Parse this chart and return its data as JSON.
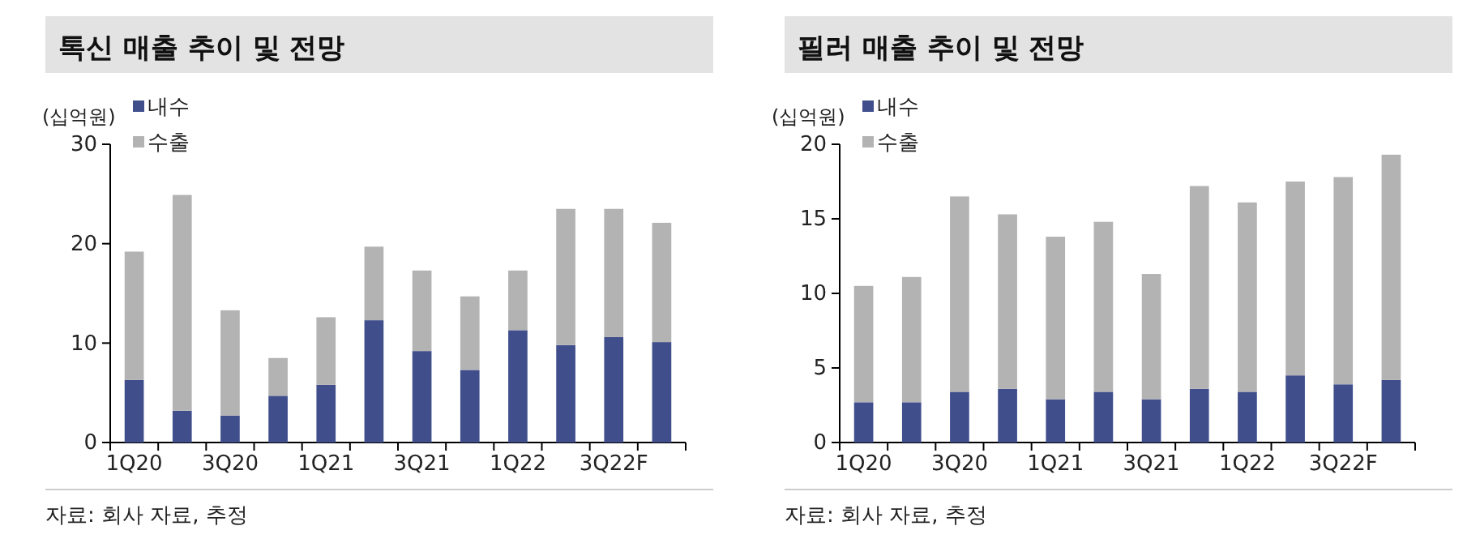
{
  "chart_data": [
    {
      "type": "bar",
      "title": "톡신 매출 추이 및 전망",
      "ylabel": "(십억원)",
      "stacked": true,
      "legend": "top left",
      "grid": false,
      "categories": [
        "1Q20",
        null,
        "3Q20",
        null,
        "1Q21",
        null,
        "3Q21",
        null,
        "1Q22",
        null,
        "3Q22F",
        null
      ],
      "series": [
        {
          "name": "내수",
          "color": "#404e8c",
          "values": [
            6.3,
            3.2,
            2.7,
            4.7,
            5.8,
            12.3,
            9.2,
            7.3,
            11.3,
            9.8,
            10.6,
            10.1
          ]
        },
        {
          "name": "수출",
          "color": "#b3b3b3",
          "values": [
            12.9,
            21.7,
            10.6,
            3.8,
            6.8,
            7.4,
            8.1,
            7.4,
            6.0,
            13.7,
            12.9,
            12.0
          ]
        }
      ],
      "ylim": [
        0,
        30
      ],
      "yticks": [
        0,
        10,
        20,
        30
      ],
      "annotations": [
        "자료: 회사 자료, 추정"
      ]
    },
    {
      "type": "bar",
      "title": "필러 매출 추이 및 전망",
      "ylabel": "(십억원)",
      "stacked": true,
      "legend": "top left",
      "grid": false,
      "categories": [
        "1Q20",
        null,
        "3Q20",
        null,
        "1Q21",
        null,
        "3Q21",
        null,
        "1Q22",
        null,
        "3Q22F",
        null
      ],
      "series": [
        {
          "name": "내수",
          "color": "#404e8c",
          "values": [
            2.7,
            2.7,
            3.4,
            3.6,
            2.9,
            3.4,
            2.9,
            3.6,
            3.4,
            4.5,
            3.9,
            4.2
          ]
        },
        {
          "name": "수출",
          "color": "#b3b3b3",
          "values": [
            7.8,
            8.4,
            13.1,
            11.7,
            10.9,
            11.4,
            8.4,
            13.6,
            12.7,
            13.0,
            13.9,
            15.1
          ]
        }
      ],
      "ylim": [
        0,
        20
      ],
      "yticks": [
        0,
        5,
        10,
        15,
        20
      ],
      "annotations": [
        "자료: 회사 자료, 추정"
      ]
    }
  ]
}
